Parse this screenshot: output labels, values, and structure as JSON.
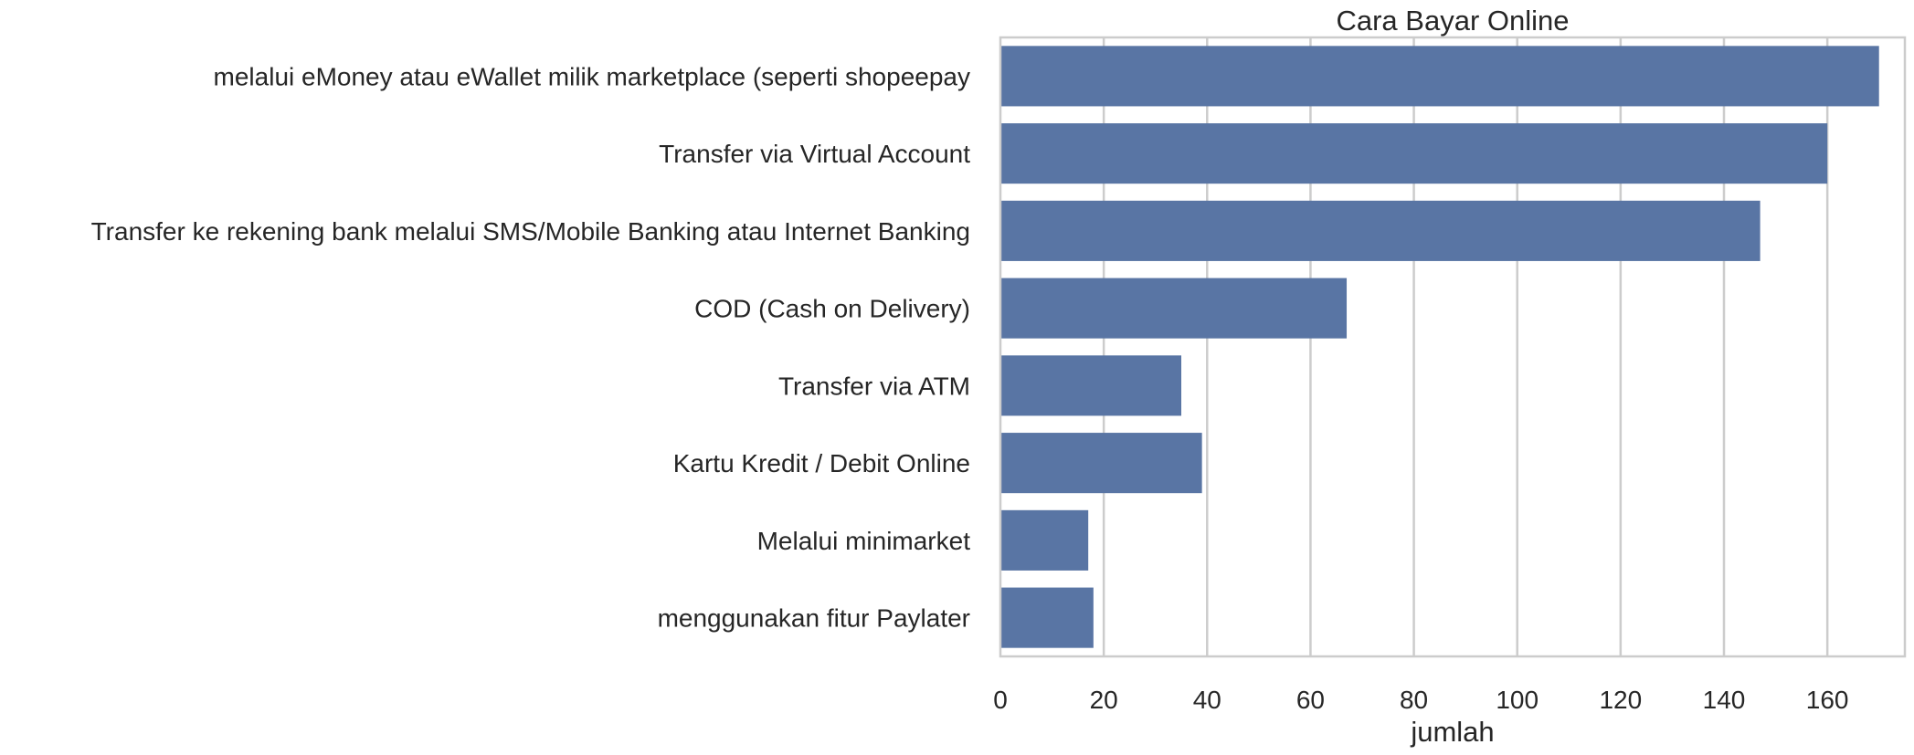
{
  "chart_data": {
    "type": "bar",
    "orientation": "horizontal",
    "title": "Cara Bayar Online",
    "xlabel": "jumlah",
    "ylabel": "",
    "xlim": [
      0,
      175
    ],
    "xticks": [
      0,
      20,
      40,
      60,
      80,
      100,
      120,
      140,
      160
    ],
    "categories": [
      "melalui eMoney atau eWallet milik marketplace (seperti shopeepay",
      "Transfer via Virtual Account",
      "Transfer ke rekening bank melalui SMS/Mobile Banking atau Internet Banking",
      "COD (Cash on Delivery)",
      "Transfer via ATM",
      "Kartu Kredit / Debit Online",
      "Melalui minimarket",
      "menggunakan fitur Paylater"
    ],
    "values": [
      170,
      160,
      147,
      67,
      35,
      39,
      17,
      18
    ],
    "grid": true,
    "bar_color": "#5975a4",
    "grid_color": "#cccccc",
    "frame_color": "#cccccc"
  }
}
